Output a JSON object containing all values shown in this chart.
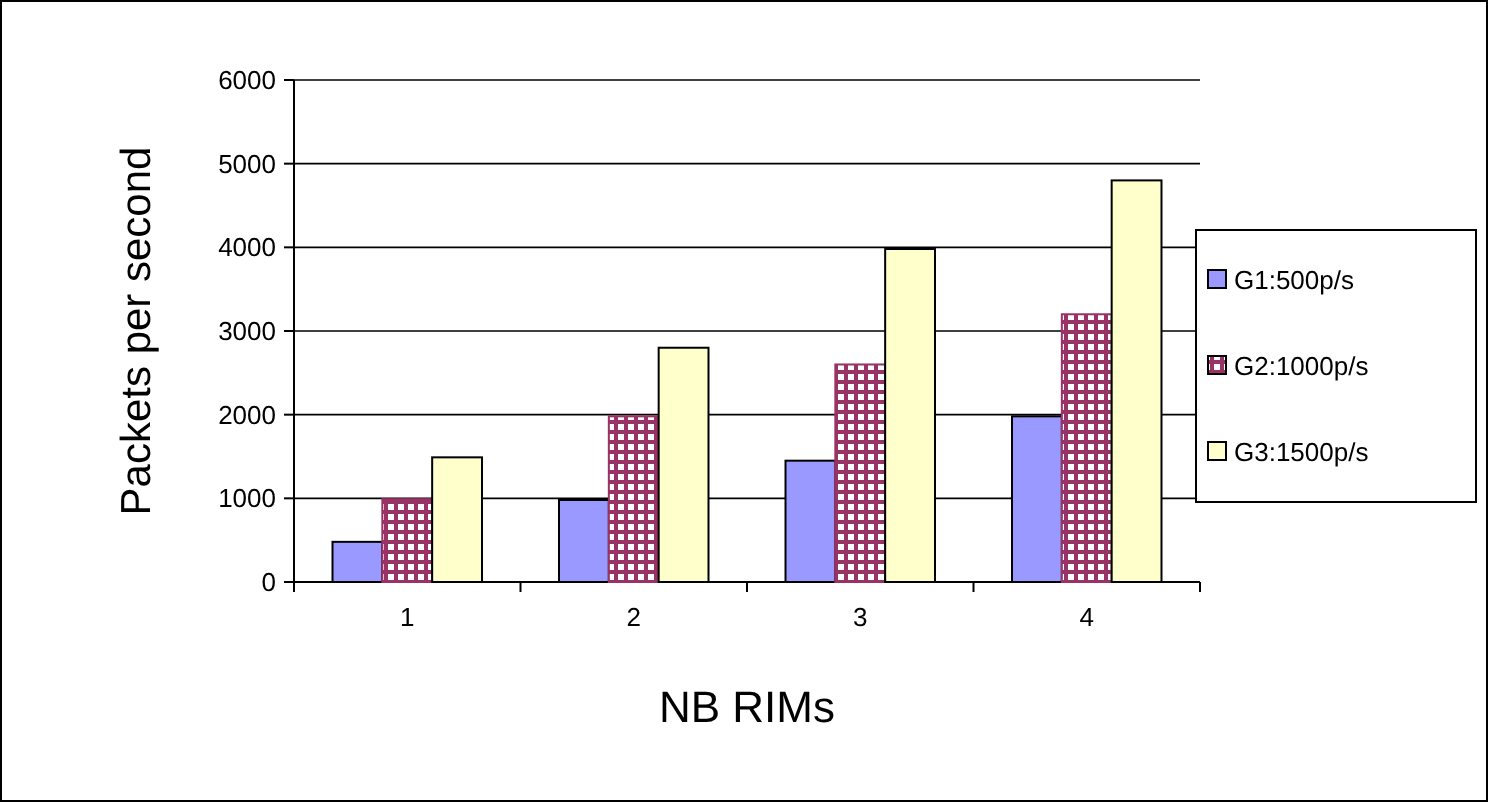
{
  "chart_data": {
    "type": "bar",
    "xlabel": "NB RIMs",
    "ylabel": "Packets per second",
    "categories": [
      "1",
      "2",
      "3",
      "4"
    ],
    "series": [
      {
        "name": "G1:500p/s",
        "color": "#9999ff",
        "values": [
          480,
          980,
          1450,
          1980
        ]
      },
      {
        "name": "G2:1000p/s",
        "color": "#993366",
        "values": [
          990,
          1980,
          2600,
          3200
        ]
      },
      {
        "name": "G3:1500p/s",
        "color": "#ffffcc",
        "values": [
          1490,
          2800,
          3980,
          4800
        ]
      }
    ],
    "ylim": [
      0,
      6000
    ],
    "yticks": [
      0,
      1000,
      2000,
      3000,
      4000,
      5000,
      6000
    ],
    "grid": "y",
    "legend": "right"
  }
}
